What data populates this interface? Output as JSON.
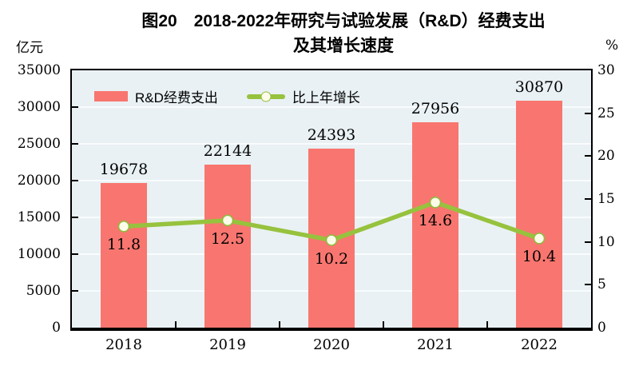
{
  "title": {
    "line1": "图20　2018-2022年研究与试验发展（R&D）经费支出",
    "line2": "及其增长速度"
  },
  "axes": {
    "left_unit": "亿元",
    "right_unit": "%"
  },
  "legend": [
    {
      "label": "R&D经费支出",
      "type": "bar",
      "color": "#F8766F"
    },
    {
      "label": "比上年增长",
      "type": "line",
      "color": "#97C23E"
    }
  ],
  "chart_data": {
    "type": "bar+line",
    "title": "图20 2018-2022年研究与试验发展（R&D）经费支出及其增长速度",
    "categories": [
      "2018",
      "2019",
      "2020",
      "2021",
      "2022"
    ],
    "series": [
      {
        "name": "R&D经费支出",
        "type": "bar",
        "axis": "left",
        "unit": "亿元",
        "values": [
          19678,
          22144,
          24393,
          27956,
          30870
        ]
      },
      {
        "name": "比上年增长",
        "type": "line",
        "axis": "right",
        "unit": "%",
        "values": [
          11.8,
          12.5,
          10.2,
          14.6,
          10.4
        ]
      }
    ],
    "value_labels": [
      "19678",
      "22144",
      "24393",
      "27956",
      "30870"
    ],
    "rate_labels": [
      "11.8",
      "12.5",
      "10.2",
      "14.6",
      "10.4"
    ],
    "left_axis": {
      "label": "亿元",
      "range": [
        0,
        35000
      ],
      "step": 5000,
      "ticks": [
        0,
        5000,
        10000,
        15000,
        20000,
        25000,
        30000,
        35000
      ]
    },
    "right_axis": {
      "label": "%",
      "range": [
        0,
        30
      ],
      "step": 5,
      "ticks": [
        0,
        5,
        10,
        15,
        20,
        25,
        30
      ]
    },
    "grid": true,
    "legend_position": "top-left-inside"
  },
  "colors": {
    "bar": "#F8766F",
    "line": "#97C23E",
    "marker_fill": "#FEFDE9",
    "marker_stroke": "#90BC40",
    "plot_bg": "#E9F1F4",
    "grid": "#F9FCFD",
    "axis": "#000000",
    "text": "#000000"
  }
}
